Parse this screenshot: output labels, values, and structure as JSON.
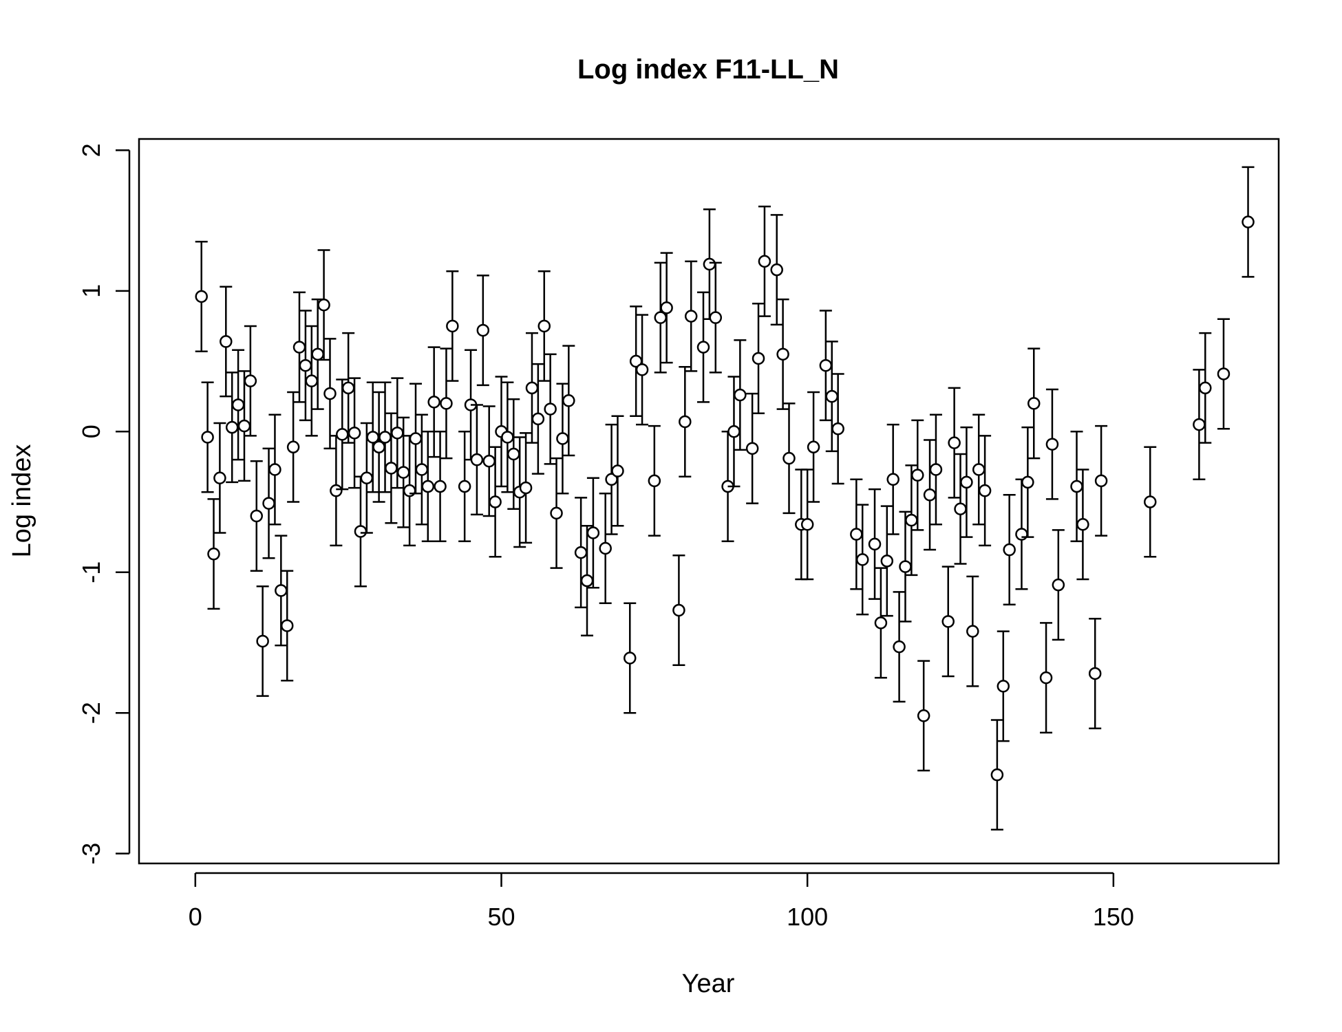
{
  "chart_data": {
    "type": "scatter",
    "title": "Log index F11-LL_N",
    "xlabel": "Year",
    "ylabel": "Log index",
    "xlim": [
      -9.2,
      177
    ],
    "ylim": [
      -3.07,
      2.08
    ],
    "x_ticks": [
      0,
      50,
      100,
      150
    ],
    "y_ticks": [
      -3,
      -2,
      -1,
      0,
      1,
      2
    ],
    "grid": false,
    "legend": "none",
    "error_half_width": 0.39,
    "points": [
      [
        1,
        0.96
      ],
      [
        2,
        -0.04
      ],
      [
        3,
        -0.87
      ],
      [
        4,
        -0.33
      ],
      [
        5,
        0.64
      ],
      [
        6,
        0.03
      ],
      [
        7,
        0.19
      ],
      [
        8,
        0.04
      ],
      [
        9,
        0.36
      ],
      [
        10,
        -0.6
      ],
      [
        11,
        -1.49
      ],
      [
        12,
        -0.51
      ],
      [
        13,
        -0.27
      ],
      [
        14,
        -1.13
      ],
      [
        15,
        -1.38
      ],
      [
        16,
        -0.11
      ],
      [
        17,
        0.6
      ],
      [
        18,
        0.47
      ],
      [
        19,
        0.36
      ],
      [
        20,
        0.55
      ],
      [
        21,
        0.9
      ],
      [
        22,
        0.27
      ],
      [
        23,
        -0.42
      ],
      [
        24,
        -0.02
      ],
      [
        25,
        0.31
      ],
      [
        26,
        -0.01
      ],
      [
        27,
        -0.71
      ],
      [
        28,
        -0.33
      ],
      [
        29,
        -0.04
      ],
      [
        30,
        -0.11
      ],
      [
        31,
        -0.04
      ],
      [
        32,
        -0.26
      ],
      [
        33,
        -0.01
      ],
      [
        34,
        -0.29
      ],
      [
        35,
        -0.42
      ],
      [
        36,
        -0.05
      ],
      [
        37,
        -0.27
      ],
      [
        38,
        -0.39
      ],
      [
        39,
        0.21
      ],
      [
        40,
        -0.39
      ],
      [
        41,
        0.2
      ],
      [
        42,
        0.75
      ],
      [
        44,
        -0.39
      ],
      [
        45,
        0.19
      ],
      [
        46,
        -0.2
      ],
      [
        47,
        0.72
      ],
      [
        48,
        -0.21
      ],
      [
        49,
        -0.5
      ],
      [
        50,
        0.0
      ],
      [
        51,
        -0.04
      ],
      [
        52,
        -0.16
      ],
      [
        53,
        -0.43
      ],
      [
        54,
        -0.4
      ],
      [
        55,
        0.31
      ],
      [
        56,
        0.09
      ],
      [
        57,
        0.75
      ],
      [
        58,
        0.16
      ],
      [
        59,
        -0.58
      ],
      [
        60,
        -0.05
      ],
      [
        61,
        0.22
      ],
      [
        63,
        -0.86
      ],
      [
        64,
        -1.06
      ],
      [
        65,
        -0.72
      ],
      [
        67,
        -0.83
      ],
      [
        68,
        -0.34
      ],
      [
        69,
        -0.28
      ],
      [
        71,
        -1.61
      ],
      [
        72,
        0.5
      ],
      [
        73,
        0.44
      ],
      [
        75,
        -0.35
      ],
      [
        76,
        0.81
      ],
      [
        77,
        0.88
      ],
      [
        79,
        -1.27
      ],
      [
        80,
        0.07
      ],
      [
        81,
        0.82
      ],
      [
        83,
        0.6
      ],
      [
        84,
        1.19
      ],
      [
        85,
        0.81
      ],
      [
        87,
        -0.39
      ],
      [
        88,
        0.0
      ],
      [
        89,
        0.26
      ],
      [
        91,
        -0.12
      ],
      [
        92,
        0.52
      ],
      [
        93,
        1.21
      ],
      [
        95,
        1.15
      ],
      [
        96,
        0.55
      ],
      [
        97,
        -0.19
      ],
      [
        99,
        -0.66
      ],
      [
        100,
        -0.66
      ],
      [
        101,
        -0.11
      ],
      [
        103,
        0.47
      ],
      [
        104,
        0.25
      ],
      [
        105,
        0.02
      ],
      [
        108,
        -0.73
      ],
      [
        109,
        -0.91
      ],
      [
        111,
        -0.8
      ],
      [
        112,
        -1.36
      ],
      [
        113,
        -0.92
      ],
      [
        114,
        -0.34
      ],
      [
        115,
        -1.53
      ],
      [
        116,
        -0.96
      ],
      [
        117,
        -0.63
      ],
      [
        118,
        -0.31
      ],
      [
        119,
        -2.02
      ],
      [
        120,
        -0.45
      ],
      [
        121,
        -0.27
      ],
      [
        123,
        -1.35
      ],
      [
        124,
        -0.08
      ],
      [
        125,
        -0.55
      ],
      [
        126,
        -0.36
      ],
      [
        127,
        -1.42
      ],
      [
        128,
        -0.27
      ],
      [
        129,
        -0.42
      ],
      [
        131,
        -2.44
      ],
      [
        132,
        -1.81
      ],
      [
        133,
        -0.84
      ],
      [
        135,
        -0.73
      ],
      [
        136,
        -0.36
      ],
      [
        137,
        0.2
      ],
      [
        139,
        -1.75
      ],
      [
        140,
        -0.09
      ],
      [
        141,
        -1.09
      ],
      [
        144,
        -0.39
      ],
      [
        145,
        -0.66
      ],
      [
        147,
        -1.72
      ],
      [
        148,
        -0.35
      ],
      [
        156,
        -0.5
      ],
      [
        164,
        0.05
      ],
      [
        165,
        0.31
      ],
      [
        168,
        0.41
      ],
      [
        172,
        1.49
      ]
    ]
  }
}
